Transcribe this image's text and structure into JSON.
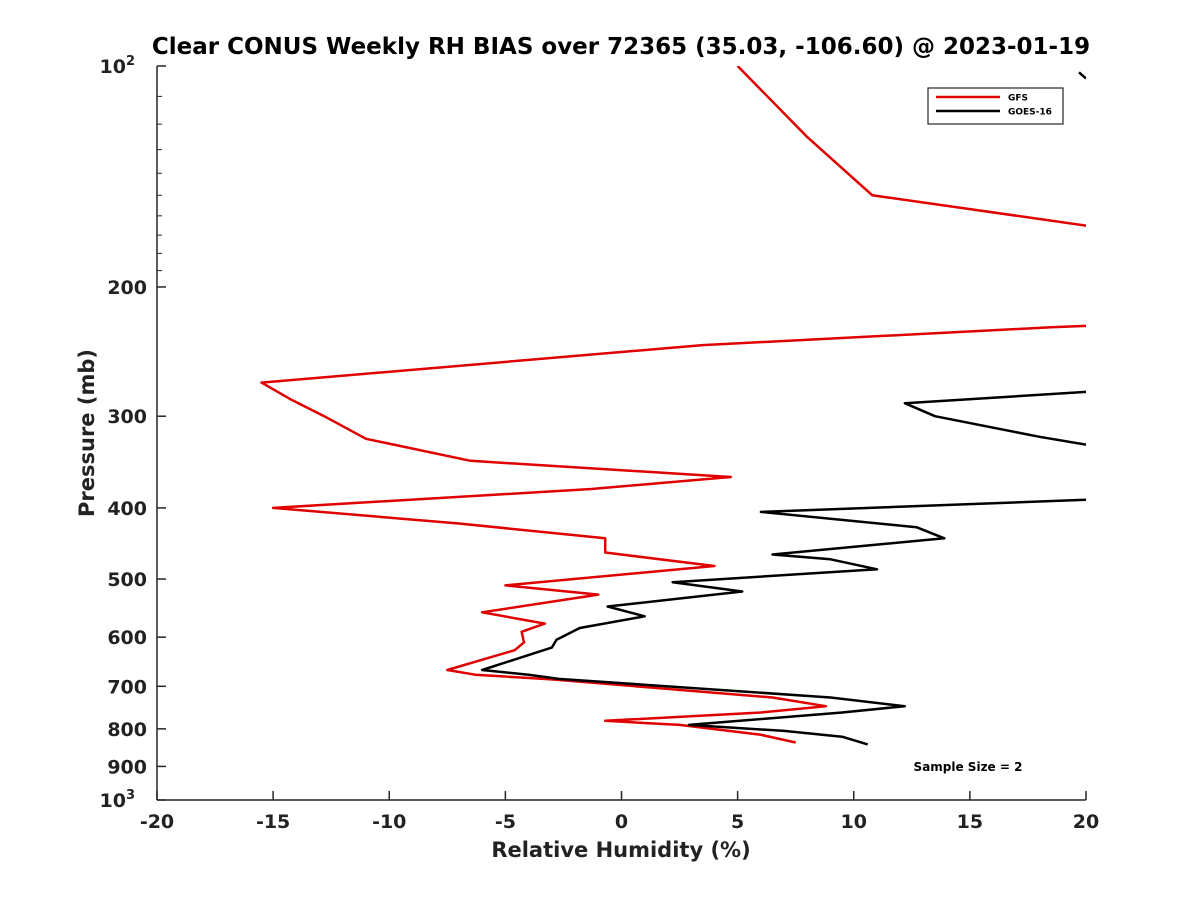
{
  "chart_data": {
    "type": "line",
    "title": "Clear CONUS Weekly RH BIAS over 72365 (35.03, -106.60) @ 2023-01-19",
    "xlabel": "Relative Humidity (%)",
    "ylabel": "Pressure (mb)",
    "xlim": [
      -20,
      20
    ],
    "ylim": [
      100,
      1000
    ],
    "y_scale": "log",
    "y_reversed": true,
    "x_ticks": [
      {
        "value": -20,
        "label": "-20"
      },
      {
        "value": -15,
        "label": "-15"
      },
      {
        "value": -10,
        "label": "-10"
      },
      {
        "value": -5,
        "label": "-5"
      },
      {
        "value": 0,
        "label": "0"
      },
      {
        "value": 5,
        "label": "5"
      },
      {
        "value": 10,
        "label": "10"
      },
      {
        "value": 15,
        "label": "15"
      },
      {
        "value": 20,
        "label": "20"
      }
    ],
    "y_ticks": [
      {
        "value": 100,
        "label": "10",
        "exp": "2"
      },
      {
        "value": 200,
        "label": "200"
      },
      {
        "value": 300,
        "label": "300"
      },
      {
        "value": 400,
        "label": "400"
      },
      {
        "value": 500,
        "label": "500"
      },
      {
        "value": 600,
        "label": "600"
      },
      {
        "value": 700,
        "label": "700"
      },
      {
        "value": 800,
        "label": "800"
      },
      {
        "value": 900,
        "label": "900"
      },
      {
        "value": 1000,
        "label": "10",
        "exp": "3"
      }
    ],
    "grid": false,
    "legend_position": "top-right",
    "series": [
      {
        "name": "GFS",
        "color": "#e00000",
        "points": [
          [
            5.0,
            100
          ],
          [
            8.0,
            125
          ],
          [
            10.8,
            150
          ],
          [
            20.0,
            165
          ],
          [
            null,
            null
          ],
          [
            20.0,
            226
          ],
          [
            18.5,
            227
          ],
          [
            3.5,
            240
          ],
          [
            -15.5,
            270
          ],
          [
            -14.2,
            285
          ],
          [
            -12.8,
            300
          ],
          [
            -11.0,
            322
          ],
          [
            -6.5,
            345
          ],
          [
            4.7,
            363
          ],
          [
            -1.3,
            377
          ],
          [
            -15.0,
            400
          ],
          [
            -7.0,
            420
          ],
          [
            -0.7,
            440
          ],
          [
            -0.7,
            460
          ],
          [
            4.0,
            480
          ],
          [
            -5.0,
            510
          ],
          [
            -1.0,
            525
          ],
          [
            -6.0,
            555
          ],
          [
            -3.3,
            575
          ],
          [
            -4.3,
            590
          ],
          [
            -4.2,
            610
          ],
          [
            -4.6,
            625
          ],
          [
            -5.7,
            640
          ],
          [
            -7.5,
            665
          ],
          [
            -6.3,
            675
          ],
          [
            -3.0,
            685
          ],
          [
            6.5,
            725
          ],
          [
            8.8,
            745
          ],
          [
            6.0,
            760
          ],
          [
            -0.7,
            780
          ],
          [
            2.5,
            790
          ],
          [
            6.0,
            815
          ],
          [
            7.5,
            835
          ]
        ]
      },
      {
        "name": "GOES-16",
        "color": "#000000",
        "points": [
          [
            20.0,
            278
          ],
          [
            12.2,
            288
          ],
          [
            13.5,
            300
          ],
          [
            18.0,
            320
          ],
          [
            20.0,
            328
          ],
          [
            null,
            null
          ],
          [
            20.0,
            390
          ],
          [
            6.0,
            405
          ],
          [
            12.7,
            425
          ],
          [
            13.9,
            440
          ],
          [
            6.5,
            463
          ],
          [
            9.0,
            470
          ],
          [
            11.0,
            485
          ],
          [
            2.2,
            505
          ],
          [
            5.2,
            520
          ],
          [
            -0.6,
            545
          ],
          [
            1.0,
            562
          ],
          [
            -1.8,
            583
          ],
          [
            -2.8,
            605
          ],
          [
            -3.0,
            620
          ],
          [
            -6.0,
            665
          ],
          [
            -4.0,
            675
          ],
          [
            -2.7,
            684
          ],
          [
            9.0,
            725
          ],
          [
            12.2,
            745
          ],
          [
            9.5,
            760
          ],
          [
            2.9,
            790
          ],
          [
            7.0,
            805
          ],
          [
            9.5,
            820
          ],
          [
            10.6,
            840
          ]
        ]
      },
      {
        "name": "",
        "color": "#000000",
        "legend": false,
        "points": [
          [
            19.7,
            102
          ],
          [
            20.0,
            104
          ]
        ]
      }
    ],
    "annotations": [
      {
        "text": "Sample Size = 2"
      }
    ]
  }
}
